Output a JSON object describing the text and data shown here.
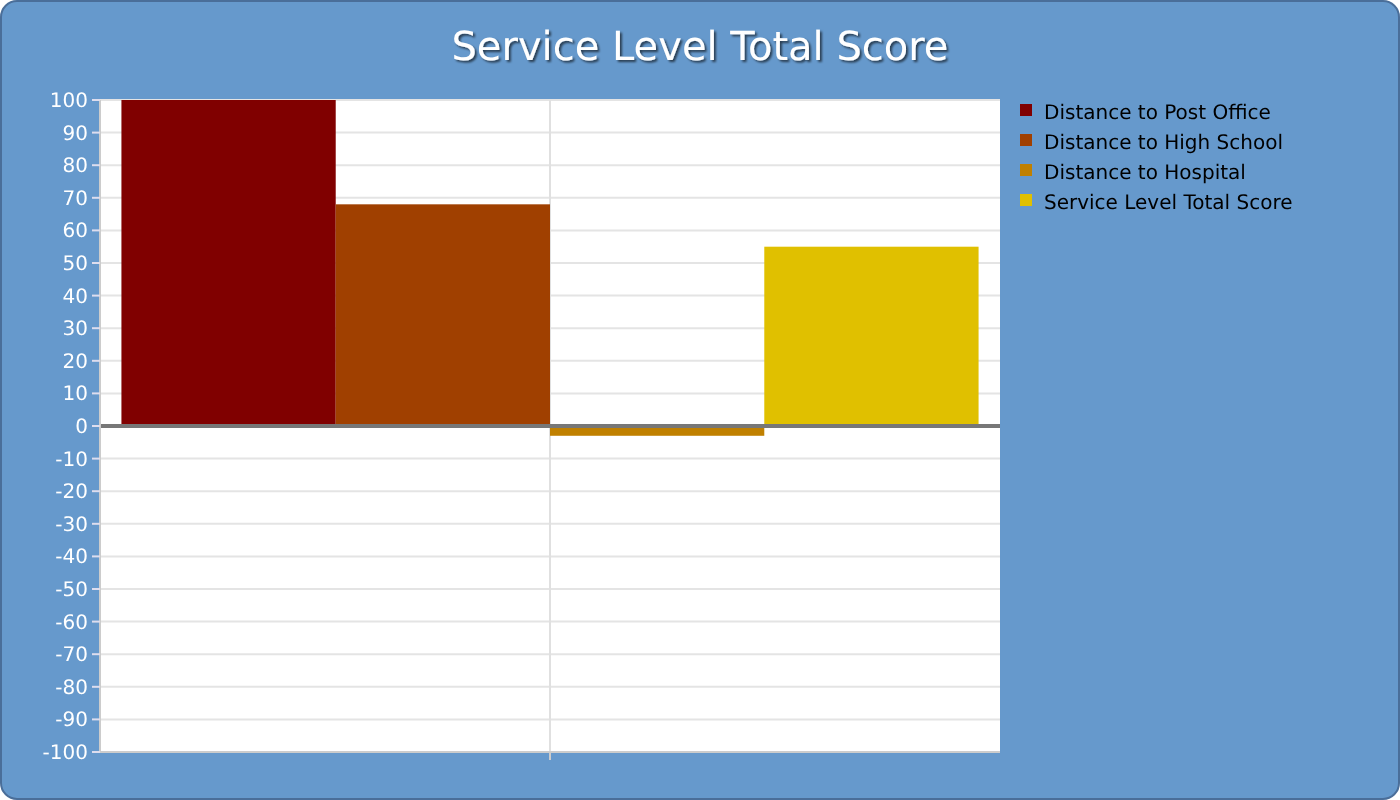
{
  "chart_data": {
    "type": "bar",
    "title": "Service Level Total Score",
    "categories": [
      null
    ],
    "series": [
      {
        "name": "Distance to Post Office",
        "color": "#800000",
        "values": [
          100
        ]
      },
      {
        "name": "Distance to High School",
        "color": "#a04000",
        "values": [
          68
        ]
      },
      {
        "name": "Distance to Hospital",
        "color": "#c08000",
        "values": [
          -3
        ]
      },
      {
        "name": "Service Level Total Score",
        "color": "#e0c000",
        "values": [
          55
        ]
      }
    ],
    "ylim": [
      -100,
      100
    ],
    "yticks": [
      -100,
      -90,
      -80,
      -70,
      -60,
      -50,
      -40,
      -30,
      -20,
      -10,
      0,
      10,
      20,
      30,
      40,
      50,
      60,
      70,
      80,
      90,
      100
    ],
    "grid": true,
    "legend": "top right"
  }
}
